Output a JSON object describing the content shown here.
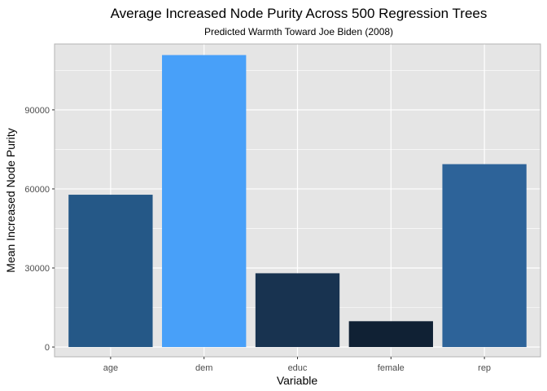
{
  "chart_data": {
    "type": "bar",
    "title": "Average Increased Node Purity Across 500 Regression Trees",
    "subtitle": "Predicted Warmth Toward Joe Biden (2008)",
    "xlabel": "Variable",
    "ylabel": "Mean Increased Node Purity",
    "categories": [
      "age",
      "dem",
      "educ",
      "female",
      "rep"
    ],
    "values": [
      57800,
      110800,
      28000,
      9800,
      69400
    ],
    "colors": [
      "#255887",
      "#48a0f9",
      "#183350",
      "#102134",
      "#2d6399"
    ],
    "ylim": [
      -3700,
      115000
    ],
    "y_ticks": [
      0,
      30000,
      60000,
      90000
    ],
    "y_tick_labels": [
      "0",
      "30000",
      "60000",
      "90000"
    ],
    "grid": true,
    "panel_background": "#e5e5e5",
    "grid_color": "#ffffff",
    "legend": "none"
  }
}
